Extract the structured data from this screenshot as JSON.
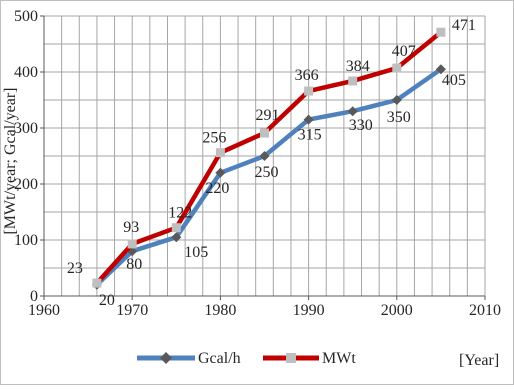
{
  "chart_data": {
    "type": "line",
    "title": "",
    "xlabel": "[Year]",
    "ylabel": "[MWt/year; Gcal/year]",
    "xlim": [
      1960,
      2010
    ],
    "ylim": [
      0,
      500
    ],
    "x_ticks": [
      "1960",
      "1970",
      "1980",
      "1990",
      "2000",
      "2010"
    ],
    "y_ticks": [
      "0",
      "100",
      "200",
      "300",
      "400",
      "500"
    ],
    "grid": true,
    "legend_position": "bottom",
    "series": [
      {
        "name": "Gcal/h",
        "color": "#4f81bd",
        "marker_color": "#595959",
        "marker": "diamond",
        "x": [
          1966,
          1970,
          1975,
          1980,
          1985,
          1990,
          1995,
          2000,
          2005
        ],
        "y": [
          20,
          80,
          105,
          220,
          250,
          315,
          330,
          350,
          405
        ],
        "labels": [
          "20",
          "80",
          "105",
          "220",
          "250",
          "315",
          "330",
          "350",
          "405"
        ]
      },
      {
        "name": "MWt",
        "color": "#c00000",
        "marker_color": "#bfbfbf",
        "marker": "square",
        "x": [
          1966,
          1970,
          1975,
          1980,
          1985,
          1990,
          1995,
          2000,
          2005
        ],
        "y": [
          23,
          93,
          122,
          256,
          291,
          366,
          384,
          407,
          471
        ],
        "labels": [
          "23",
          "93",
          "122",
          "256",
          "291",
          "366",
          "384",
          "407",
          "471"
        ]
      }
    ]
  }
}
